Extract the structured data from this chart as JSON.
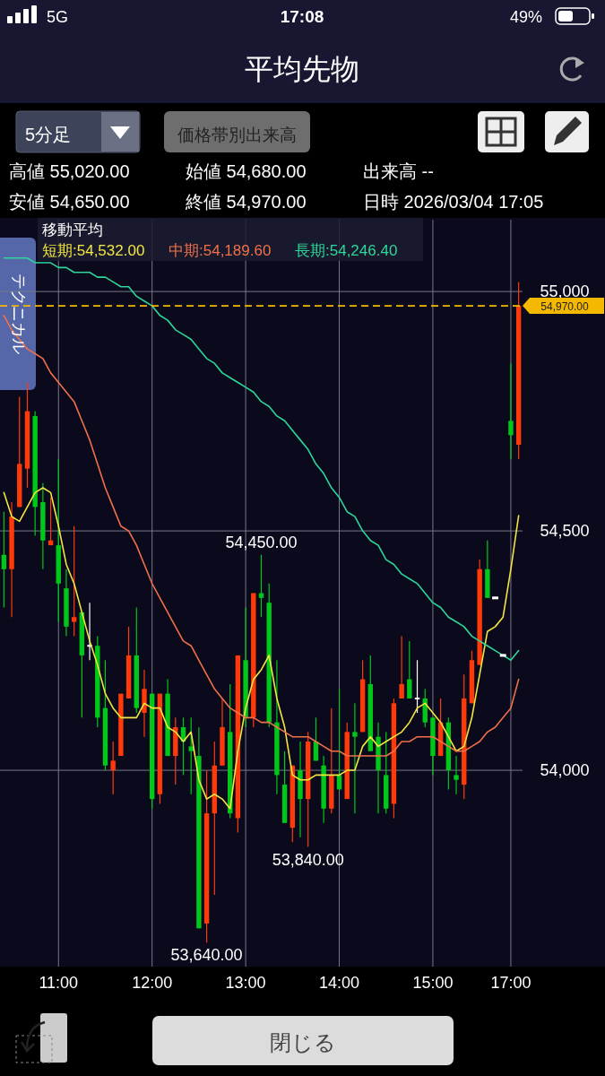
{
  "chart_data": {
    "type": "candlestick",
    "title": "平均先物",
    "categories": [
      null,
      null,
      null,
      null,
      null,
      null,
      null,
      "11:00",
      null,
      null,
      null,
      null,
      null,
      null,
      null,
      null,
      null,
      null,
      null,
      "12:00",
      null,
      null,
      null,
      null,
      null,
      null,
      null,
      null,
      null,
      null,
      null,
      "13:00",
      null,
      null,
      null,
      null,
      null,
      null,
      null,
      null,
      null,
      null,
      null,
      "14:00",
      null,
      null,
      null,
      null,
      null,
      null,
      null,
      null,
      null,
      null,
      null,
      "15:00",
      null,
      null,
      null,
      null,
      null,
      null,
      null,
      null,
      null,
      "17:00",
      null
    ],
    "ohlc": [
      [
        54450,
        54540,
        54340,
        54420
      ],
      [
        54420,
        54560,
        54320,
        54530
      ],
      [
        54550,
        54780,
        54550,
        54640
      ],
      [
        54630,
        54810,
        54590,
        54750
      ],
      [
        54740,
        54750,
        54490,
        54550
      ],
      [
        54560,
        54600,
        54420,
        54480
      ],
      [
        54470,
        54570,
        54470,
        54480
      ],
      [
        54470,
        54650,
        54310,
        54390
      ],
      [
        54380,
        54420,
        54280,
        54300
      ],
      [
        54310,
        54510,
        54280,
        54320
      ],
      [
        54330,
        54330,
        54110,
        54240
      ],
      [
        54260,
        54350,
        54230,
        54260
      ],
      [
        54260,
        54280,
        54090,
        54110
      ],
      [
        54130,
        54230,
        54000,
        54010
      ],
      [
        54000,
        54060,
        53950,
        54020
      ],
      [
        54030,
        54160,
        54030,
        54160
      ],
      [
        54150,
        54300,
        54150,
        54240
      ],
      [
        54240,
        54340,
        54120,
        54130
      ],
      [
        54120,
        54210,
        54070,
        54170
      ],
      [
        54160,
        54160,
        53920,
        53940
      ],
      [
        53950,
        54160,
        53930,
        54160
      ],
      [
        54160,
        54190,
        54030,
        54030
      ],
      [
        54030,
        54110,
        53970,
        54090
      ],
      [
        54090,
        54110,
        53990,
        54060
      ],
      [
        54050,
        54110,
        53950,
        54040
      ],
      [
        54030,
        54090,
        53670,
        53670
      ],
      [
        53680,
        54000,
        53640,
        53910
      ],
      [
        53910,
        54060,
        53740,
        54010
      ],
      [
        54010,
        54150,
        54010,
        54090
      ],
      [
        54080,
        54180,
        53900,
        53910
      ],
      [
        53900,
        54240,
        53870,
        54240
      ],
      [
        54230,
        54340,
        54090,
        54110
      ],
      [
        54110,
        54370,
        54090,
        54370
      ],
      [
        54370,
        54450,
        54320,
        54360
      ],
      [
        54350,
        54390,
        54090,
        54100
      ],
      [
        54100,
        54230,
        53950,
        53990
      ],
      [
        53970,
        54040,
        53890,
        53890
      ],
      [
        53880,
        54010,
        53850,
        54010
      ],
      [
        54000,
        54060,
        53860,
        53940
      ],
      [
        53940,
        54080,
        53840,
        54060
      ],
      [
        54060,
        54110,
        54020,
        54020
      ],
      [
        54010,
        54030,
        53890,
        53920
      ],
      [
        53920,
        54130,
        53910,
        53990
      ],
      [
        53990,
        54170,
        53960,
        53960
      ],
      [
        53940,
        54100,
        53940,
        54080
      ],
      [
        54080,
        54140,
        53910,
        54070
      ],
      [
        54080,
        54230,
        54080,
        54190
      ],
      [
        54180,
        54240,
        54040,
        54040
      ],
      [
        54070,
        54100,
        53910,
        54000
      ],
      [
        53990,
        54080,
        53910,
        53920
      ],
      [
        53930,
        54150,
        53900,
        54140
      ],
      [
        54150,
        54280,
        54150,
        54180
      ],
      [
        54190,
        54270,
        54150,
        54150
      ],
      [
        54150,
        54230,
        54120,
        54150
      ],
      [
        54150,
        54170,
        54090,
        54100
      ],
      [
        54110,
        54110,
        53990,
        54030
      ],
      [
        54030,
        54150,
        54030,
        54100
      ],
      [
        54100,
        54110,
        53960,
        54000
      ],
      [
        53990,
        54030,
        53950,
        53980
      ],
      [
        53970,
        54200,
        53940,
        54150
      ],
      [
        54140,
        54250,
        54140,
        54230
      ],
      [
        54220,
        54440,
        54220,
        54420
      ],
      [
        54420,
        54480,
        54360,
        54360
      ],
      [
        54360,
        54360,
        54360,
        54360
      ],
      [
        54240,
        54240,
        54240,
        54240
      ],
      [
        54730,
        54850,
        54650,
        54700
      ],
      [
        54680,
        55020,
        54650,
        54970
      ]
    ],
    "series": [
      {
        "name": "短期:54,532.00",
        "type": "line",
        "color": "#f2e640",
        "values": [
          54580,
          54530,
          54520,
          54550,
          54580,
          54590,
          54580,
          54510,
          54430,
          54390,
          54330,
          54270,
          54220,
          54160,
          54130,
          54110,
          54110,
          54110,
          54140,
          54130,
          54130,
          54090,
          54080,
          54060,
          54080,
          53980,
          53940,
          53950,
          53940,
          53920,
          54040,
          54130,
          54190,
          54210,
          54240,
          54150,
          54090,
          53990,
          53980,
          53980,
          53990,
          53990,
          53990,
          53990,
          54000,
          54000,
          54050,
          54070,
          54050,
          54060,
          54070,
          54080,
          54100,
          54130,
          54140,
          54120,
          54100,
          54070,
          54040,
          54050,
          54110,
          54200,
          54290,
          54300,
          54320,
          54420,
          54532
        ]
      },
      {
        "name": "中期:54,189.60",
        "type": "line",
        "color": "#f0704a",
        "values": [
          54950,
          54920,
          54900,
          54880,
          54870,
          54860,
          54830,
          54810,
          54790,
          54770,
          54730,
          54690,
          54640,
          54590,
          54550,
          54510,
          54500,
          54470,
          54430,
          54390,
          54360,
          54330,
          54300,
          54270,
          54260,
          54230,
          54200,
          54170,
          54150,
          54130,
          54120,
          54110,
          54110,
          54100,
          54100,
          54090,
          54080,
          54070,
          54070,
          54070,
          54060,
          54050,
          54040,
          54040,
          54030,
          54030,
          54030,
          54030,
          54030,
          54030,
          54040,
          54060,
          54060,
          54070,
          54070,
          54070,
          54060,
          54050,
          54040,
          54040,
          54050,
          54060,
          54080,
          54090,
          54110,
          54130,
          54190
        ]
      },
      {
        "name": "長期:54,246.40",
        "type": "line",
        "color": "#2ed69a",
        "values": [
          55070,
          55070,
          55070,
          55070,
          55060,
          55060,
          55060,
          55050,
          55050,
          55040,
          55040,
          55040,
          55030,
          55030,
          55020,
          55010,
          55010,
          54990,
          54980,
          54970,
          54950,
          54940,
          54920,
          54910,
          54900,
          54880,
          54860,
          54850,
          54830,
          54820,
          54810,
          54800,
          54790,
          54770,
          54760,
          54740,
          54730,
          54710,
          54690,
          54670,
          54640,
          54620,
          54590,
          54570,
          54540,
          54530,
          54500,
          54480,
          54470,
          54440,
          54430,
          54410,
          54400,
          54390,
          54370,
          54350,
          54340,
          54320,
          54310,
          54300,
          54280,
          54270,
          54260,
          54250,
          54240,
          54230,
          54250
        ]
      }
    ],
    "ylim": [
      53590,
      55150
    ],
    "yticks": [
      {
        "value": 54000,
        "label": "54,000"
      },
      {
        "value": 54500,
        "label": "54,500"
      },
      {
        "value": 55000,
        "label": "55,000"
      }
    ],
    "grid": true,
    "legend": "top",
    "legend_title": "移動平均",
    "ref_lines": [
      {
        "axis": "y",
        "value": 54970,
        "label": "54,970.00",
        "color": "#f5b800",
        "line_style": "dashed"
      }
    ],
    "annotations": [
      "17:08",
      "5G",
      "49%",
      "5分足",
      "価格帯別出来高",
      "高値 55,020.00",
      "始値 54,680.00",
      "出来高 --",
      "安値 54,650.00",
      "終値 54,970.00",
      "日時 2026/03/04 17:05",
      "テクニカル",
      "閉じる",
      {
        "text": "54,450.00",
        "y": 54450
      },
      {
        "text": "53,840.00",
        "y": 53840
      },
      {
        "text": "53,640.00",
        "y": 53640
      }
    ]
  }
}
